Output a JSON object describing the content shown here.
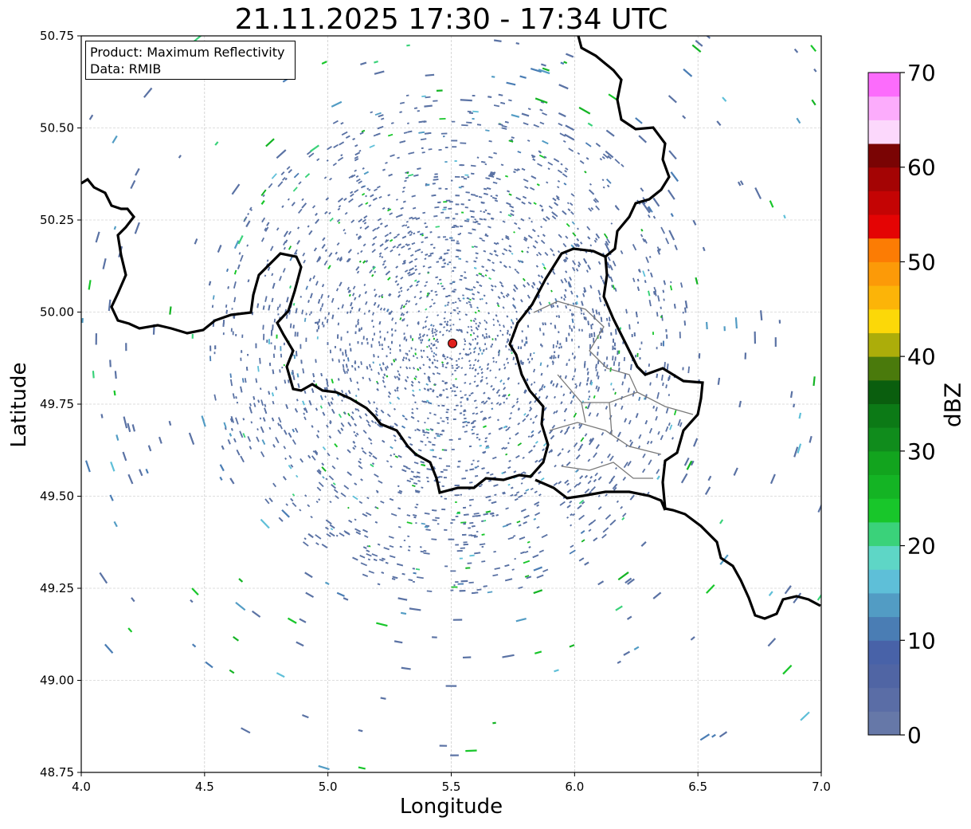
{
  "map": {
    "title": "21.11.2025 17:30 - 17:34 UTC",
    "xlabel": "Longitude",
    "ylabel": "Latitude",
    "info": {
      "product": "Product: Maximum Reflectivity",
      "data": "Data: RMIB"
    },
    "lon_range": [
      4.0,
      7.0
    ],
    "lat_range": [
      48.75,
      50.75
    ],
    "lon_ticks": [
      "4.0",
      "4.5",
      "5.0",
      "5.5",
      "6.0",
      "6.5",
      "7.0"
    ],
    "lat_ticks": [
      "48.75",
      "49.00",
      "49.25",
      "49.50",
      "49.75",
      "50.00",
      "50.25",
      "50.50",
      "50.75"
    ],
    "grid": true,
    "radar_site": {
      "lon": 5.505,
      "lat": 49.915,
      "color": "#e0201c"
    },
    "echo_color": "#5a72a4"
  },
  "colorbar": {
    "label": "dBZ",
    "ticks": [
      "0",
      "10",
      "20",
      "30",
      "40",
      "50",
      "60",
      "70"
    ],
    "min": 0,
    "max": 70,
    "step": 2.5,
    "colors": [
      "#6678a8",
      "#5a6da6",
      "#5065a4",
      "#4862a8",
      "#4a7db4",
      "#529cc4",
      "#5ebfd8",
      "#5ed6c6",
      "#3ad27a",
      "#18c62a",
      "#14b424",
      "#12a41e",
      "#108c1c",
      "#0c7a16",
      "#0a5e0e",
      "#4a7a0c",
      "#acad0a",
      "#fcd808",
      "#fcb408",
      "#fc9a08",
      "#fc7c04",
      "#e40404",
      "#c40404",
      "#a40404",
      "#7a0404",
      "#fcd8fc",
      "#fcacfc",
      "#fc6cfc",
      "#ec30ec"
    ]
  }
}
